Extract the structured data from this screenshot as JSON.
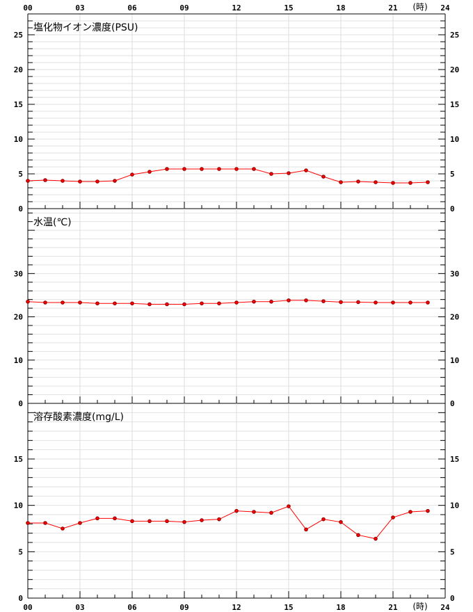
{
  "hour_unit": "(時)",
  "x_ticks": [
    "00",
    "03",
    "06",
    "09",
    "12",
    "15",
    "18",
    "21",
    "24"
  ],
  "chart_data": [
    {
      "type": "line",
      "title": "塩化物イオン濃度(PSU)",
      "x": [
        0,
        1,
        2,
        3,
        4,
        5,
        6,
        7,
        8,
        9,
        10,
        11,
        12,
        13,
        14,
        15,
        16,
        17,
        18,
        19,
        20,
        21,
        22,
        23
      ],
      "values": [
        4.0,
        4.1,
        4.0,
        3.9,
        3.9,
        4.0,
        4.9,
        5.3,
        5.7,
        5.7,
        5.7,
        5.7,
        5.7,
        5.7,
        5.0,
        5.1,
        5.5,
        4.6,
        3.8,
        3.9,
        3.8,
        3.7,
        3.7,
        3.8
      ],
      "ylim": [
        0,
        28
      ],
      "y_ticks": [
        "0",
        "5",
        "10",
        "15",
        "20",
        "25"
      ],
      "line_color": "#ff0000",
      "marker_fill": "#ff0000",
      "marker_stroke": "#880000",
      "grid": true
    },
    {
      "type": "line",
      "title": "水温(℃)",
      "x": [
        0,
        1,
        2,
        3,
        4,
        5,
        6,
        7,
        8,
        9,
        10,
        11,
        12,
        13,
        14,
        15,
        16,
        17,
        18,
        19,
        20,
        21,
        22,
        23
      ],
      "values": [
        23.5,
        23.3,
        23.3,
        23.3,
        23.1,
        23.1,
        23.1,
        22.9,
        22.9,
        22.9,
        23.1,
        23.1,
        23.3,
        23.5,
        23.5,
        23.8,
        23.8,
        23.6,
        23.4,
        23.4,
        23.3,
        23.3,
        23.3,
        23.3
      ],
      "ylim": [
        0,
        45
      ],
      "y_ticks": [
        "0",
        "10",
        "20",
        "30"
      ],
      "line_color": "#ff0000",
      "marker_fill": "#ff0000",
      "marker_stroke": "#880000",
      "grid": true
    },
    {
      "type": "line",
      "title": "溶存酸素濃度(mg/L)",
      "x": [
        0,
        1,
        2,
        3,
        4,
        5,
        6,
        7,
        8,
        9,
        10,
        11,
        12,
        13,
        14,
        15,
        16,
        17,
        18,
        19,
        20,
        21,
        22,
        23
      ],
      "values": [
        8.1,
        8.1,
        7.5,
        8.1,
        8.6,
        8.6,
        8.3,
        8.3,
        8.3,
        8.2,
        8.4,
        8.5,
        9.4,
        9.3,
        9.2,
        9.9,
        7.4,
        8.5,
        8.2,
        6.8,
        6.4,
        8.7,
        9.3,
        9.4
      ],
      "ylim": [
        0,
        21
      ],
      "y_ticks": [
        "0",
        "5",
        "10",
        "15"
      ],
      "line_color": "#ff0000",
      "marker_fill": "#ff0000",
      "marker_stroke": "#880000",
      "grid": true
    }
  ]
}
